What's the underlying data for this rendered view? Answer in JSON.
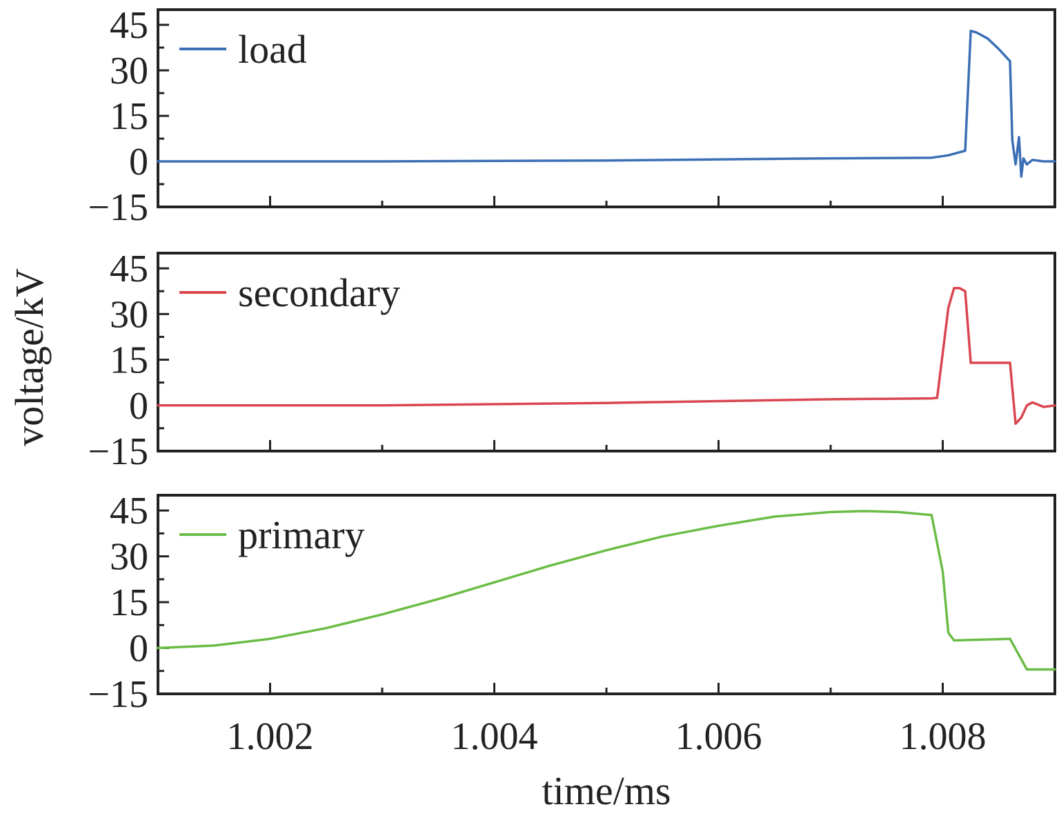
{
  "chart_data": {
    "type": "line",
    "layout": "stacked",
    "xlabel": "time/ms",
    "ylabel": "voltage/kV",
    "xlim": [
      1.001,
      1.009
    ],
    "x_major_ticks": [
      1.002,
      1.004,
      1.006,
      1.008
    ],
    "x_tick_labels": [
      "1.002",
      "1.004",
      "1.006",
      "1.008"
    ],
    "x_minor_ticks": [
      1.003,
      1.005,
      1.007
    ],
    "ylim": [
      -15,
      50
    ],
    "y_major_ticks": [
      -15,
      0,
      15,
      30,
      45
    ],
    "y_tick_labels": [
      "−15",
      "0",
      "15",
      "30",
      "45"
    ],
    "y_minor_ticks": [
      -7.5,
      7.5,
      22.5,
      37.5
    ],
    "grid": false,
    "legend_position": "top-left",
    "panels": [
      {
        "series": [
          {
            "name": "load",
            "color": "#3a6fb5",
            "x": [
              1.001,
              1.003,
              1.005,
              1.007,
              1.0079,
              1.00805,
              1.0082,
              1.00825,
              1.0083,
              1.0084,
              1.0085,
              1.0086,
              1.00862,
              1.00865,
              1.00868,
              1.0087,
              1.00872,
              1.00875,
              1.0088,
              1.0089,
              1.009
            ],
            "y": [
              0,
              0,
              0.3,
              1.0,
              1.2,
              2.0,
              3.5,
              43,
              42.5,
              40.5,
              37,
              33,
              7,
              -1,
              8,
              -5,
              1,
              -1,
              0.5,
              0,
              0
            ]
          }
        ]
      },
      {
        "series": [
          {
            "name": "secondary",
            "color": "#d9464f",
            "x": [
              1.001,
              1.003,
              1.005,
              1.007,
              1.0079,
              1.00795,
              1.00805,
              1.0081,
              1.00815,
              1.0082,
              1.00825,
              1.0086,
              1.0086,
              1.00865,
              1.0087,
              1.00875,
              1.0088,
              1.0089,
              1.009
            ],
            "y": [
              0,
              0,
              0.8,
              2.0,
              2.3,
              2.5,
              32,
              38.5,
              38.5,
              37.5,
              14,
              14,
              14,
              -6,
              -4,
              0,
              1,
              -0.5,
              0
            ]
          }
        ]
      },
      {
        "series": [
          {
            "name": "primary",
            "color": "#6abc45",
            "x": [
              1.001,
              1.0015,
              1.002,
              1.0025,
              1.003,
              1.0035,
              1.004,
              1.0045,
              1.005,
              1.0055,
              1.006,
              1.0065,
              1.007,
              1.0073,
              1.0076,
              1.0079,
              1.008,
              1.00805,
              1.0081,
              1.0086,
              1.00875,
              1.0089,
              1.009
            ],
            "y": [
              0,
              0.8,
              3.0,
              6.5,
              11,
              16,
              21.5,
              27,
              32,
              36.5,
              40,
              43,
              44.5,
              44.8,
              44.5,
              43.5,
              25,
              5,
              2.5,
              3.0,
              -7,
              -7,
              -7
            ]
          }
        ]
      }
    ]
  }
}
